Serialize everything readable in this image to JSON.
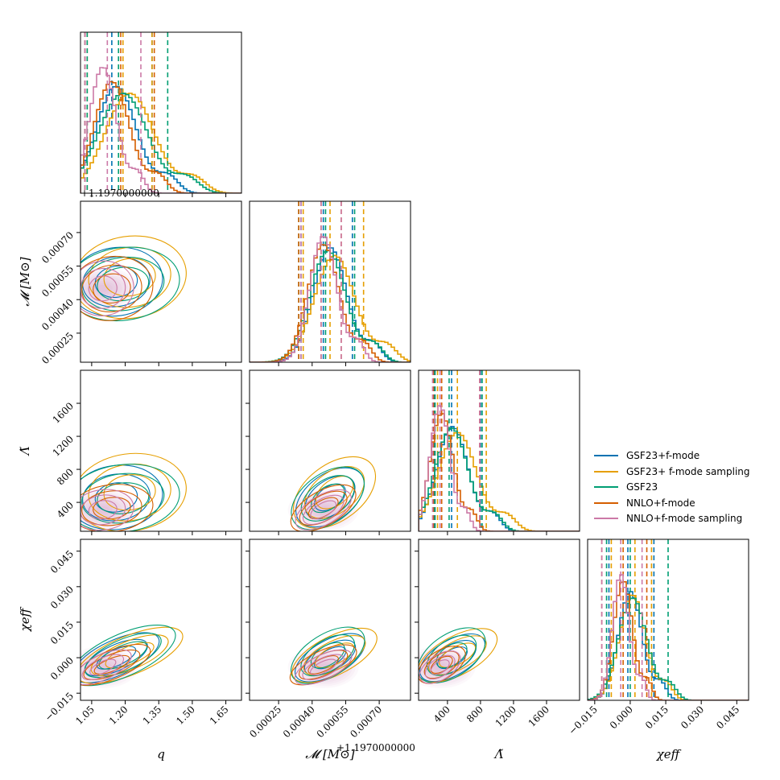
{
  "chart_data": {
    "type": "corner",
    "title": "",
    "parameters": [
      {
        "key": "q",
        "label": "q",
        "range": [
          1.0,
          1.72
        ],
        "ticks": [
          1.05,
          1.2,
          1.35,
          1.5,
          1.65
        ],
        "tick_labels": [
          "1.05",
          "1.20",
          "1.35",
          "1.50",
          "1.65"
        ]
      },
      {
        "key": "mc",
        "label": "𝓜 [M⊙]",
        "range": [
          0.00012,
          0.00084
        ],
        "ticks": [
          0.00025,
          0.0004,
          0.00055,
          0.0007
        ],
        "tick_labels": [
          "0.00025",
          "0.00040",
          "0.00055",
          "0.00070"
        ],
        "offset_label": "+1.1970000000"
      },
      {
        "key": "lt",
        "label": "Λ̃",
        "range": [
          50,
          2000
        ],
        "ticks": [
          400,
          800,
          1200,
          1600
        ],
        "tick_labels": [
          "400",
          "800",
          "1200",
          "1600"
        ]
      },
      {
        "key": "chi",
        "label": "χeff",
        "range": [
          -0.018,
          0.05
        ],
        "ticks": [
          -0.015,
          0.0,
          0.015,
          0.03,
          0.045
        ],
        "tick_labels": [
          "−0.015",
          "0.000",
          "0.015",
          "0.030",
          "0.045"
        ]
      }
    ],
    "series": [
      {
        "name": "GSF23+f-mode",
        "color": "#0072B2",
        "means": [
          1.16,
          0.00048,
          460,
          0.0
        ],
        "sds": [
          0.09,
          7.5e-05,
          190,
          0.005
        ],
        "corr": [
          0.3,
          0.25,
          0.8,
          0.6
        ],
        "quantiles": [
          [
            1.02,
            1.14,
            1.32
          ],
          [
            0.00035,
            0.00045,
            0.00058
          ],
          [
            240,
            450,
            800
          ],
          [
            -0.009,
            -0.001,
            0.01
          ]
        ]
      },
      {
        "name": "GSF23+ f-mode sampling",
        "color": "#E69F00",
        "means": [
          1.22,
          0.0005,
          520,
          0.001
        ],
        "sds": [
          0.11,
          9e-05,
          230,
          0.0055
        ],
        "corr": [
          0.3,
          0.3,
          0.8,
          0.55
        ],
        "quantiles": [
          [
            1.03,
            1.19,
            1.32
          ],
          [
            0.00036,
            0.00048,
            0.00063
          ],
          [
            280,
            520,
            870
          ],
          [
            -0.008,
            0.002,
            0.009
          ]
        ]
      },
      {
        "name": "GSF23",
        "color": "#009E73",
        "means": [
          1.19,
          0.00047,
          450,
          0.001
        ],
        "sds": [
          0.11,
          8e-05,
          200,
          0.006
        ],
        "corr": [
          0.25,
          0.25,
          0.85,
          0.6
        ],
        "quantiles": [
          [
            1.03,
            1.17,
            1.39
          ],
          [
            0.00034,
            0.00046,
            0.00059
          ],
          [
            250,
            420,
            820
          ],
          [
            -0.01,
            0.0,
            0.016
          ]
        ]
      },
      {
        "name": "NNLO+f-mode",
        "color": "#D55E00",
        "means": [
          1.14,
          0.00045,
          330,
          -0.003
        ],
        "sds": [
          0.08,
          7e-05,
          140,
          0.004
        ],
        "corr": [
          0.3,
          0.25,
          0.75,
          0.55
        ],
        "quantiles": [
          [
            1.02,
            1.18,
            1.33
          ],
          [
            0.00034,
            0.00044,
            0.00053
          ],
          [
            230,
            330,
            790
          ],
          [
            -0.012,
            -0.003,
            0.007
          ]
        ]
      },
      {
        "name": "NNLO+f-mode sampling",
        "color": "#CC79A7",
        "means": [
          1.1,
          0.00045,
          310,
          -0.004
        ],
        "sds": [
          0.06,
          6e-05,
          120,
          0.0035
        ],
        "corr": [
          0.3,
          0.25,
          0.7,
          0.5
        ],
        "quantiles": [
          [
            1.02,
            1.12,
            1.27
          ],
          [
            0.00035,
            0.00044,
            0.00053
          ],
          [
            220,
            310,
            790
          ],
          [
            -0.012,
            -0.004,
            0.005
          ]
        ]
      }
    ]
  }
}
